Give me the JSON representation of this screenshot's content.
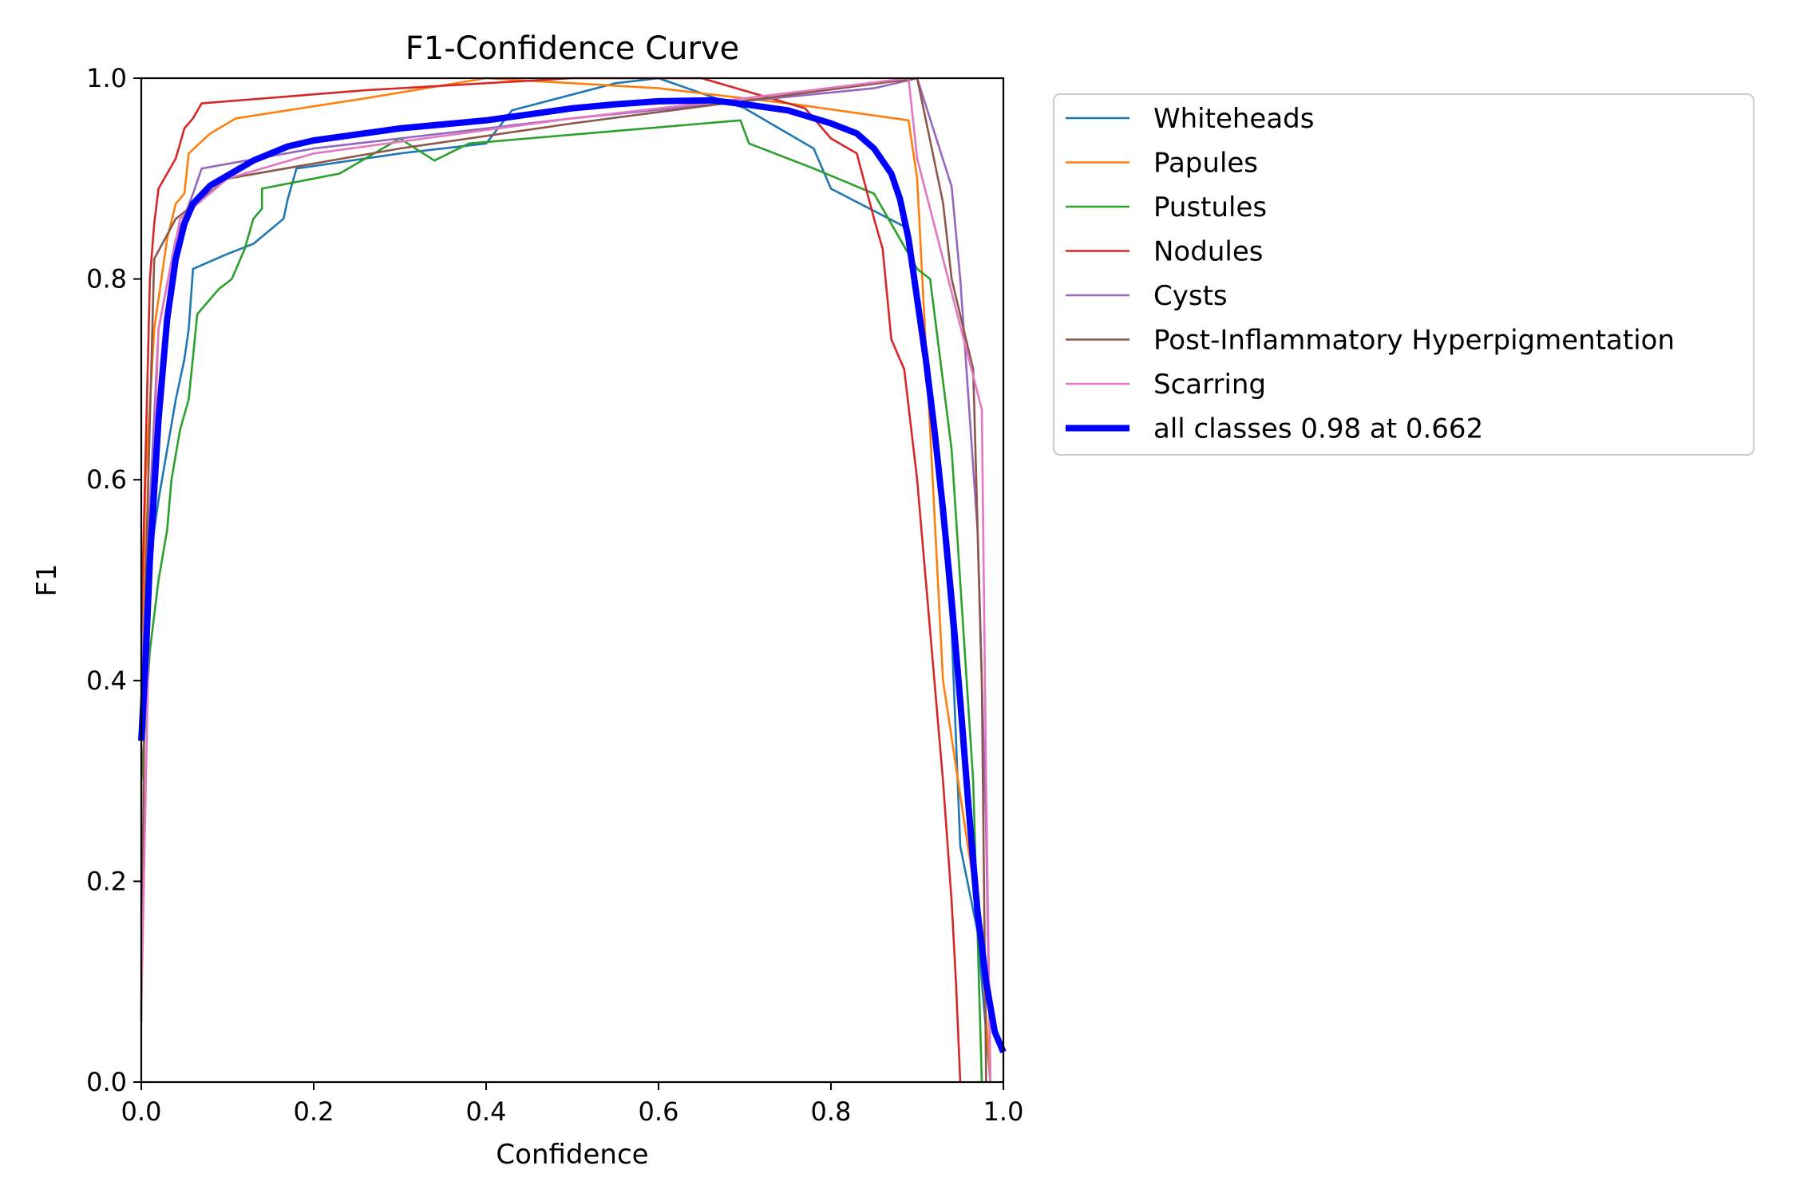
{
  "chart_data": {
    "type": "line",
    "title": "F1-Confidence Curve",
    "xlabel": "Confidence",
    "ylabel": "F1",
    "xlim": [
      0.0,
      1.0
    ],
    "ylim": [
      0.0,
      1.0
    ],
    "xticks": [
      "0.0",
      "0.2",
      "0.4",
      "0.6",
      "0.8",
      "1.0"
    ],
    "yticks": [
      "0.0",
      "0.2",
      "0.4",
      "0.6",
      "0.8",
      "1.0"
    ],
    "grid": false,
    "legend_position": "outside-right-top",
    "series": [
      {
        "name": "Whiteheads",
        "color": "#1f77b4",
        "width": 2.6,
        "points": [
          [
            0.0,
            0.35
          ],
          [
            0.005,
            0.45
          ],
          [
            0.01,
            0.52
          ],
          [
            0.02,
            0.58
          ],
          [
            0.03,
            0.63
          ],
          [
            0.04,
            0.68
          ],
          [
            0.05,
            0.72
          ],
          [
            0.055,
            0.75
          ],
          [
            0.06,
            0.81
          ],
          [
            0.1,
            0.825
          ],
          [
            0.13,
            0.835
          ],
          [
            0.165,
            0.86
          ],
          [
            0.17,
            0.88
          ],
          [
            0.18,
            0.91
          ],
          [
            0.3,
            0.925
          ],
          [
            0.4,
            0.935
          ],
          [
            0.43,
            0.968
          ],
          [
            0.55,
            0.995
          ],
          [
            0.6,
            1.0
          ],
          [
            0.7,
            0.97
          ],
          [
            0.78,
            0.93
          ],
          [
            0.8,
            0.89
          ],
          [
            0.89,
            0.85
          ],
          [
            0.905,
            0.75
          ],
          [
            0.92,
            0.65
          ],
          [
            0.94,
            0.45
          ],
          [
            0.95,
            0.235
          ],
          [
            0.97,
            0.15
          ],
          [
            0.985,
            0.0
          ]
        ]
      },
      {
        "name": "Papules",
        "color": "#ff7f0e",
        "width": 2.6,
        "points": [
          [
            0.0,
            0.38
          ],
          [
            0.005,
            0.6
          ],
          [
            0.015,
            0.75
          ],
          [
            0.03,
            0.84
          ],
          [
            0.04,
            0.875
          ],
          [
            0.05,
            0.885
          ],
          [
            0.055,
            0.925
          ],
          [
            0.08,
            0.945
          ],
          [
            0.11,
            0.96
          ],
          [
            0.26,
            0.98
          ],
          [
            0.4,
            1.0
          ],
          [
            0.6,
            0.99
          ],
          [
            0.75,
            0.975
          ],
          [
            0.89,
            0.958
          ],
          [
            0.9,
            0.9
          ],
          [
            0.93,
            0.4
          ],
          [
            0.965,
            0.2
          ],
          [
            0.975,
            0.13
          ],
          [
            0.985,
            0.0
          ]
        ]
      },
      {
        "name": "Pustules",
        "color": "#2ca02c",
        "width": 2.6,
        "points": [
          [
            0.0,
            0.3
          ],
          [
            0.01,
            0.43
          ],
          [
            0.02,
            0.5
          ],
          [
            0.03,
            0.55
          ],
          [
            0.035,
            0.6
          ],
          [
            0.045,
            0.65
          ],
          [
            0.055,
            0.68
          ],
          [
            0.065,
            0.765
          ],
          [
            0.09,
            0.79
          ],
          [
            0.105,
            0.8
          ],
          [
            0.12,
            0.83
          ],
          [
            0.13,
            0.86
          ],
          [
            0.14,
            0.87
          ],
          [
            0.14,
            0.89
          ],
          [
            0.23,
            0.905
          ],
          [
            0.3,
            0.94
          ],
          [
            0.34,
            0.918
          ],
          [
            0.38,
            0.935
          ],
          [
            0.695,
            0.958
          ],
          [
            0.705,
            0.935
          ],
          [
            0.78,
            0.91
          ],
          [
            0.85,
            0.885
          ],
          [
            0.88,
            0.84
          ],
          [
            0.9,
            0.81
          ],
          [
            0.915,
            0.8
          ],
          [
            0.94,
            0.63
          ],
          [
            0.965,
            0.3
          ],
          [
            0.975,
            0.0
          ]
        ]
      },
      {
        "name": "Nodules",
        "color": "#d62728",
        "width": 2.6,
        "points": [
          [
            0.0,
            0.45
          ],
          [
            0.01,
            0.8
          ],
          [
            0.015,
            0.855
          ],
          [
            0.02,
            0.89
          ],
          [
            0.04,
            0.92
          ],
          [
            0.05,
            0.95
          ],
          [
            0.06,
            0.96
          ],
          [
            0.07,
            0.975
          ],
          [
            0.26,
            0.988
          ],
          [
            0.5,
            1.0
          ],
          [
            0.65,
            1.0
          ],
          [
            0.77,
            0.97
          ],
          [
            0.8,
            0.94
          ],
          [
            0.83,
            0.925
          ],
          [
            0.85,
            0.86
          ],
          [
            0.86,
            0.83
          ],
          [
            0.87,
            0.74
          ],
          [
            0.885,
            0.71
          ],
          [
            0.9,
            0.6
          ],
          [
            0.91,
            0.5
          ],
          [
            0.92,
            0.4
          ],
          [
            0.93,
            0.3
          ],
          [
            0.94,
            0.18
          ],
          [
            0.945,
            0.1
          ],
          [
            0.95,
            0.0
          ]
        ]
      },
      {
        "name": "Cysts",
        "color": "#9467bd",
        "width": 2.6,
        "points": [
          [
            0.0,
            0.4
          ],
          [
            0.02,
            0.75
          ],
          [
            0.04,
            0.84
          ],
          [
            0.06,
            0.885
          ],
          [
            0.07,
            0.91
          ],
          [
            0.2,
            0.93
          ],
          [
            0.5,
            0.96
          ],
          [
            0.85,
            0.99
          ],
          [
            0.9,
            1.0
          ],
          [
            0.94,
            0.892
          ],
          [
            0.95,
            0.8
          ],
          [
            0.97,
            0.55
          ],
          [
            0.98,
            0.25
          ],
          [
            0.985,
            0.0
          ]
        ]
      },
      {
        "name": "Post-Inflammatory Hyperpigmentation",
        "color": "#8c564b",
        "width": 2.6,
        "points": [
          [
            0.0,
            0.06
          ],
          [
            0.005,
            0.5
          ],
          [
            0.015,
            0.82
          ],
          [
            0.04,
            0.86
          ],
          [
            0.07,
            0.88
          ],
          [
            0.1,
            0.9
          ],
          [
            0.3,
            0.93
          ],
          [
            0.5,
            0.955
          ],
          [
            0.9,
            1.0
          ],
          [
            0.93,
            0.876
          ],
          [
            0.94,
            0.8
          ],
          [
            0.965,
            0.71
          ],
          [
            0.975,
            0.4
          ],
          [
            0.98,
            0.0
          ]
        ]
      },
      {
        "name": "Scarring",
        "color": "#e377c2",
        "width": 2.6,
        "points": [
          [
            0.0,
            0.07
          ],
          [
            0.01,
            0.5
          ],
          [
            0.02,
            0.75
          ],
          [
            0.045,
            0.86
          ],
          [
            0.1,
            0.9
          ],
          [
            0.2,
            0.925
          ],
          [
            0.5,
            0.96
          ],
          [
            0.7,
            0.98
          ],
          [
            0.89,
            1.0
          ],
          [
            0.9,
            0.92
          ],
          [
            0.93,
            0.82
          ],
          [
            0.975,
            0.67
          ],
          [
            0.98,
            0.3
          ],
          [
            0.985,
            0.0
          ]
        ]
      },
      {
        "name": "all classes 0.98 at 0.662",
        "color": "#0000ff",
        "width": 8,
        "points": [
          [
            0.0,
            0.34
          ],
          [
            0.005,
            0.42
          ],
          [
            0.01,
            0.52
          ],
          [
            0.02,
            0.66
          ],
          [
            0.03,
            0.76
          ],
          [
            0.04,
            0.82
          ],
          [
            0.05,
            0.855
          ],
          [
            0.06,
            0.875
          ],
          [
            0.08,
            0.893
          ],
          [
            0.1,
            0.903
          ],
          [
            0.13,
            0.918
          ],
          [
            0.17,
            0.932
          ],
          [
            0.2,
            0.938
          ],
          [
            0.25,
            0.944
          ],
          [
            0.3,
            0.95
          ],
          [
            0.35,
            0.954
          ],
          [
            0.4,
            0.958
          ],
          [
            0.45,
            0.964
          ],
          [
            0.5,
            0.97
          ],
          [
            0.55,
            0.974
          ],
          [
            0.6,
            0.977
          ],
          [
            0.662,
            0.978
          ],
          [
            0.7,
            0.974
          ],
          [
            0.75,
            0.968
          ],
          [
            0.8,
            0.955
          ],
          [
            0.83,
            0.945
          ],
          [
            0.85,
            0.93
          ],
          [
            0.87,
            0.905
          ],
          [
            0.88,
            0.88
          ],
          [
            0.89,
            0.84
          ],
          [
            0.9,
            0.78
          ],
          [
            0.91,
            0.72
          ],
          [
            0.92,
            0.65
          ],
          [
            0.93,
            0.57
          ],
          [
            0.94,
            0.48
          ],
          [
            0.95,
            0.38
          ],
          [
            0.96,
            0.27
          ],
          [
            0.97,
            0.17
          ],
          [
            0.98,
            0.1
          ],
          [
            0.99,
            0.05
          ],
          [
            1.0,
            0.03
          ]
        ]
      }
    ]
  }
}
